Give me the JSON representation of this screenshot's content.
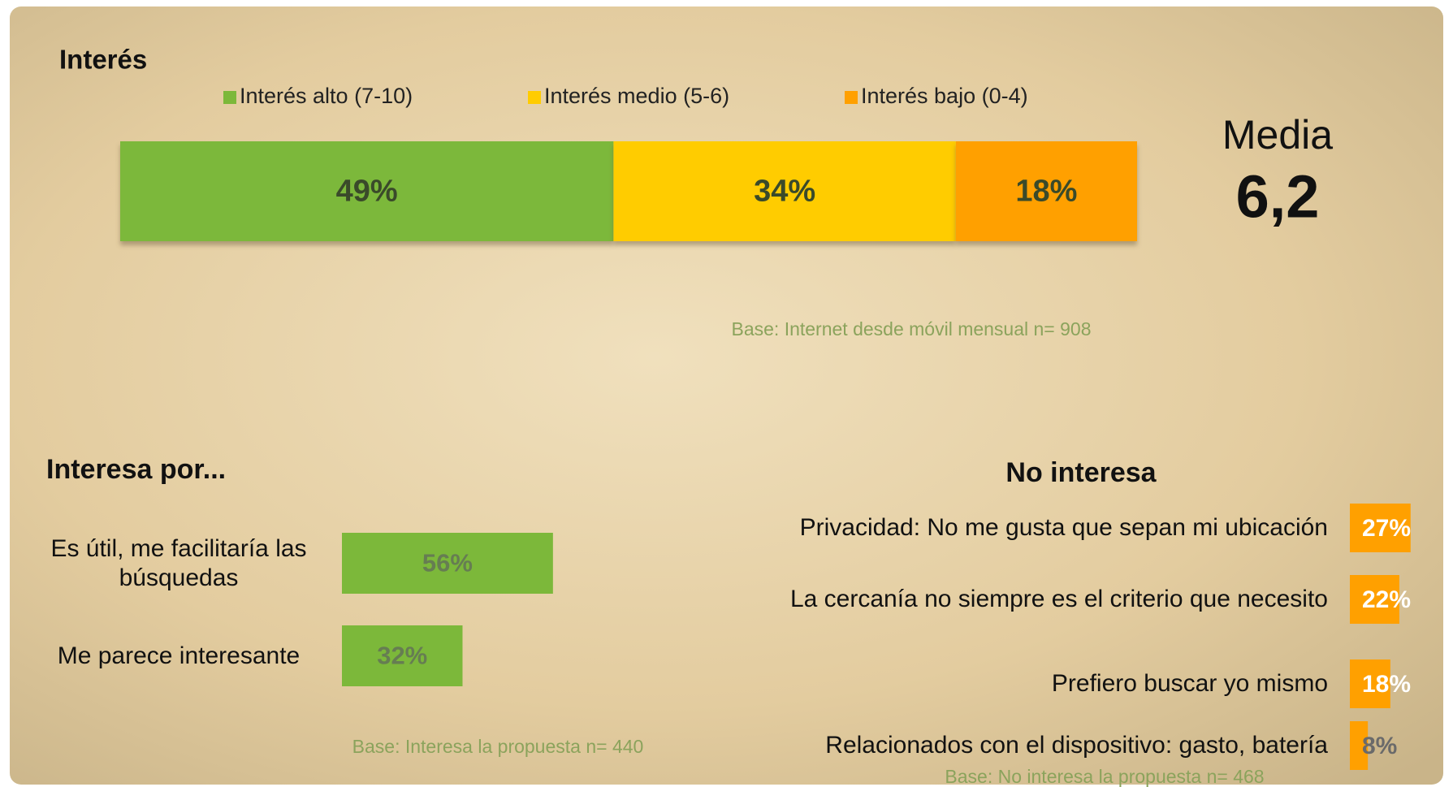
{
  "chart_data": [
    {
      "type": "stacked_bar",
      "title": "Interés",
      "series": [
        {
          "name": "Interés alto (7-10)",
          "color": "#7cb83a",
          "values": [
            49
          ],
          "value_labels": [
            "49%"
          ]
        },
        {
          "name": "Interés medio (5-6)",
          "color": "#ffcc00",
          "values": [
            34
          ],
          "value_labels": [
            "34%"
          ]
        },
        {
          "name": "Interés bajo (0-4)",
          "color": "#ffa000",
          "values": [
            18
          ],
          "value_labels": [
            "18%"
          ]
        }
      ],
      "xlim": [
        0,
        101
      ],
      "annotations": [
        "Media",
        "6,2"
      ],
      "note": "Base: Internet desde móvil mensual n= 908"
    },
    {
      "type": "hbar",
      "title": "Interesa por...",
      "categories": [
        "Es útil, me facilitaría las búsquedas",
        "Me parece interesante"
      ],
      "values": [
        56,
        32
      ],
      "value_labels": [
        "56%",
        "32%"
      ],
      "color": "#7cb83a",
      "xlim": [
        0,
        100
      ],
      "note": "Base: Interesa la propuesta n= 440"
    },
    {
      "type": "hbar",
      "title": "No interesa",
      "categories": [
        "Privacidad: No me gusta que sepan  mi ubicación",
        "La cercanía no siempre es el criterio que necesito",
        "Prefiero buscar yo mismo",
        "Relacionados con el dispositivo: gasto, batería"
      ],
      "values": [
        27,
        22,
        18,
        8
      ],
      "value_labels": [
        "27%",
        "22%",
        "18%",
        "8%"
      ],
      "color": "#ffa000",
      "xlim": [
        0,
        100
      ],
      "note": "Base: No interesa la propuesta n= 468"
    }
  ]
}
